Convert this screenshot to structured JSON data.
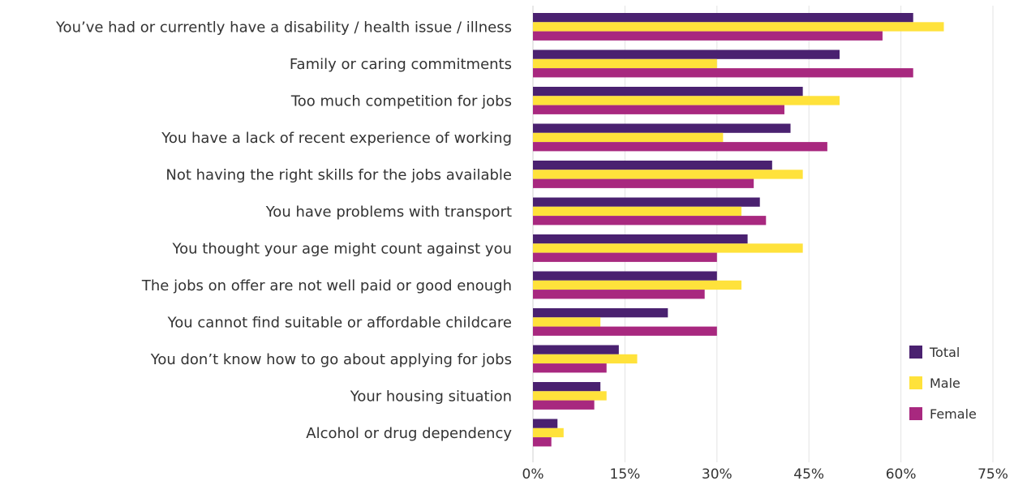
{
  "chart_data": {
    "type": "bar",
    "orientation": "horizontal",
    "categories": [
      "You’ve had or currently have a disability / health issue / illness",
      "Family or caring commitments",
      "Too much competition for jobs",
      "You have a lack of recent experience of working",
      "Not having the right skills for the jobs available",
      "You have problems with transport",
      "You thought your age might count against you",
      "The jobs on offer are not well paid or good enough",
      "You cannot find suitable or affordable childcare",
      "You don’t know how to go about applying for jobs",
      "Your housing situation",
      "Alcohol or drug dependency"
    ],
    "series": [
      {
        "name": "Total",
        "color": "#4a2170",
        "values": [
          62,
          50,
          44,
          42,
          39,
          37,
          35,
          30,
          22,
          14,
          11,
          4
        ]
      },
      {
        "name": "Male",
        "color": "#ffe23b",
        "values": [
          67,
          30,
          50,
          31,
          44,
          34,
          44,
          34,
          11,
          17,
          12,
          5
        ]
      },
      {
        "name": "Female",
        "color": "#a8287f",
        "values": [
          57,
          62,
          41,
          48,
          36,
          38,
          30,
          28,
          30,
          12,
          10,
          3
        ]
      }
    ],
    "xlim": [
      0,
      75
    ],
    "xticks": [
      "0%",
      "15%",
      "30%",
      "45%",
      "60%",
      "75%"
    ],
    "xtick_values": [
      0,
      15,
      30,
      45,
      60,
      75
    ],
    "grid": true,
    "legend_position": "bottom-right",
    "title": "",
    "xlabel": "",
    "ylabel": ""
  }
}
